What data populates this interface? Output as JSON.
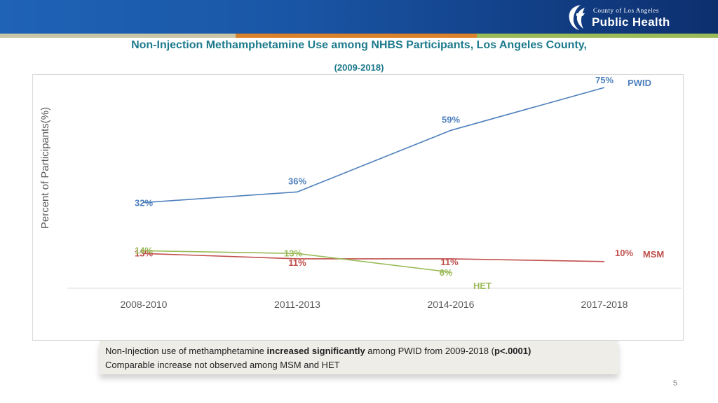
{
  "header": {
    "logo_top": "County of Los Angeles",
    "logo_main": "Public Health",
    "banner_colors": [
      "#1f63b6",
      "#0d2f6e"
    ],
    "stripe_colors": [
      "#c8c6a6",
      "#d9822b",
      "#9bbb59"
    ]
  },
  "chart_data": {
    "type": "line",
    "title": "Non-Injection Methamphetamine Use among NHBS Participants, Los Angeles County,",
    "subtitle": "(2009-2018)",
    "xlabel": "",
    "ylabel": "Percent of Participants(%)",
    "ylim": [
      0,
      80
    ],
    "grid": false,
    "categories": [
      "2008-2010",
      "2011-2013",
      "2014-2016",
      "2017-2018"
    ],
    "series": [
      {
        "name": "PWID",
        "color": "#4f81bd",
        "values": [
          32,
          36,
          59,
          75
        ],
        "labels": [
          "32%",
          "36%",
          "59%",
          "75%"
        ]
      },
      {
        "name": "MSM",
        "color": "#c0504d",
        "values": [
          13,
          11,
          11,
          10
        ],
        "labels": [
          "13%",
          "11%",
          "11%",
          "10%"
        ]
      },
      {
        "name": "HET",
        "color": "#9bbb59",
        "values": [
          14,
          13,
          6,
          null
        ],
        "labels": [
          "14%",
          "13%",
          "6%",
          ""
        ]
      }
    ]
  },
  "note": {
    "line1_a": "Non-Injection use of methamphetamine ",
    "line1_b": "increased significantly",
    "line1_c": " among PWID from 2009-2018 (",
    "line1_d": "p<.0001)",
    "line2": "Comparable increase not observed among MSM and HET"
  },
  "page_number": "5"
}
